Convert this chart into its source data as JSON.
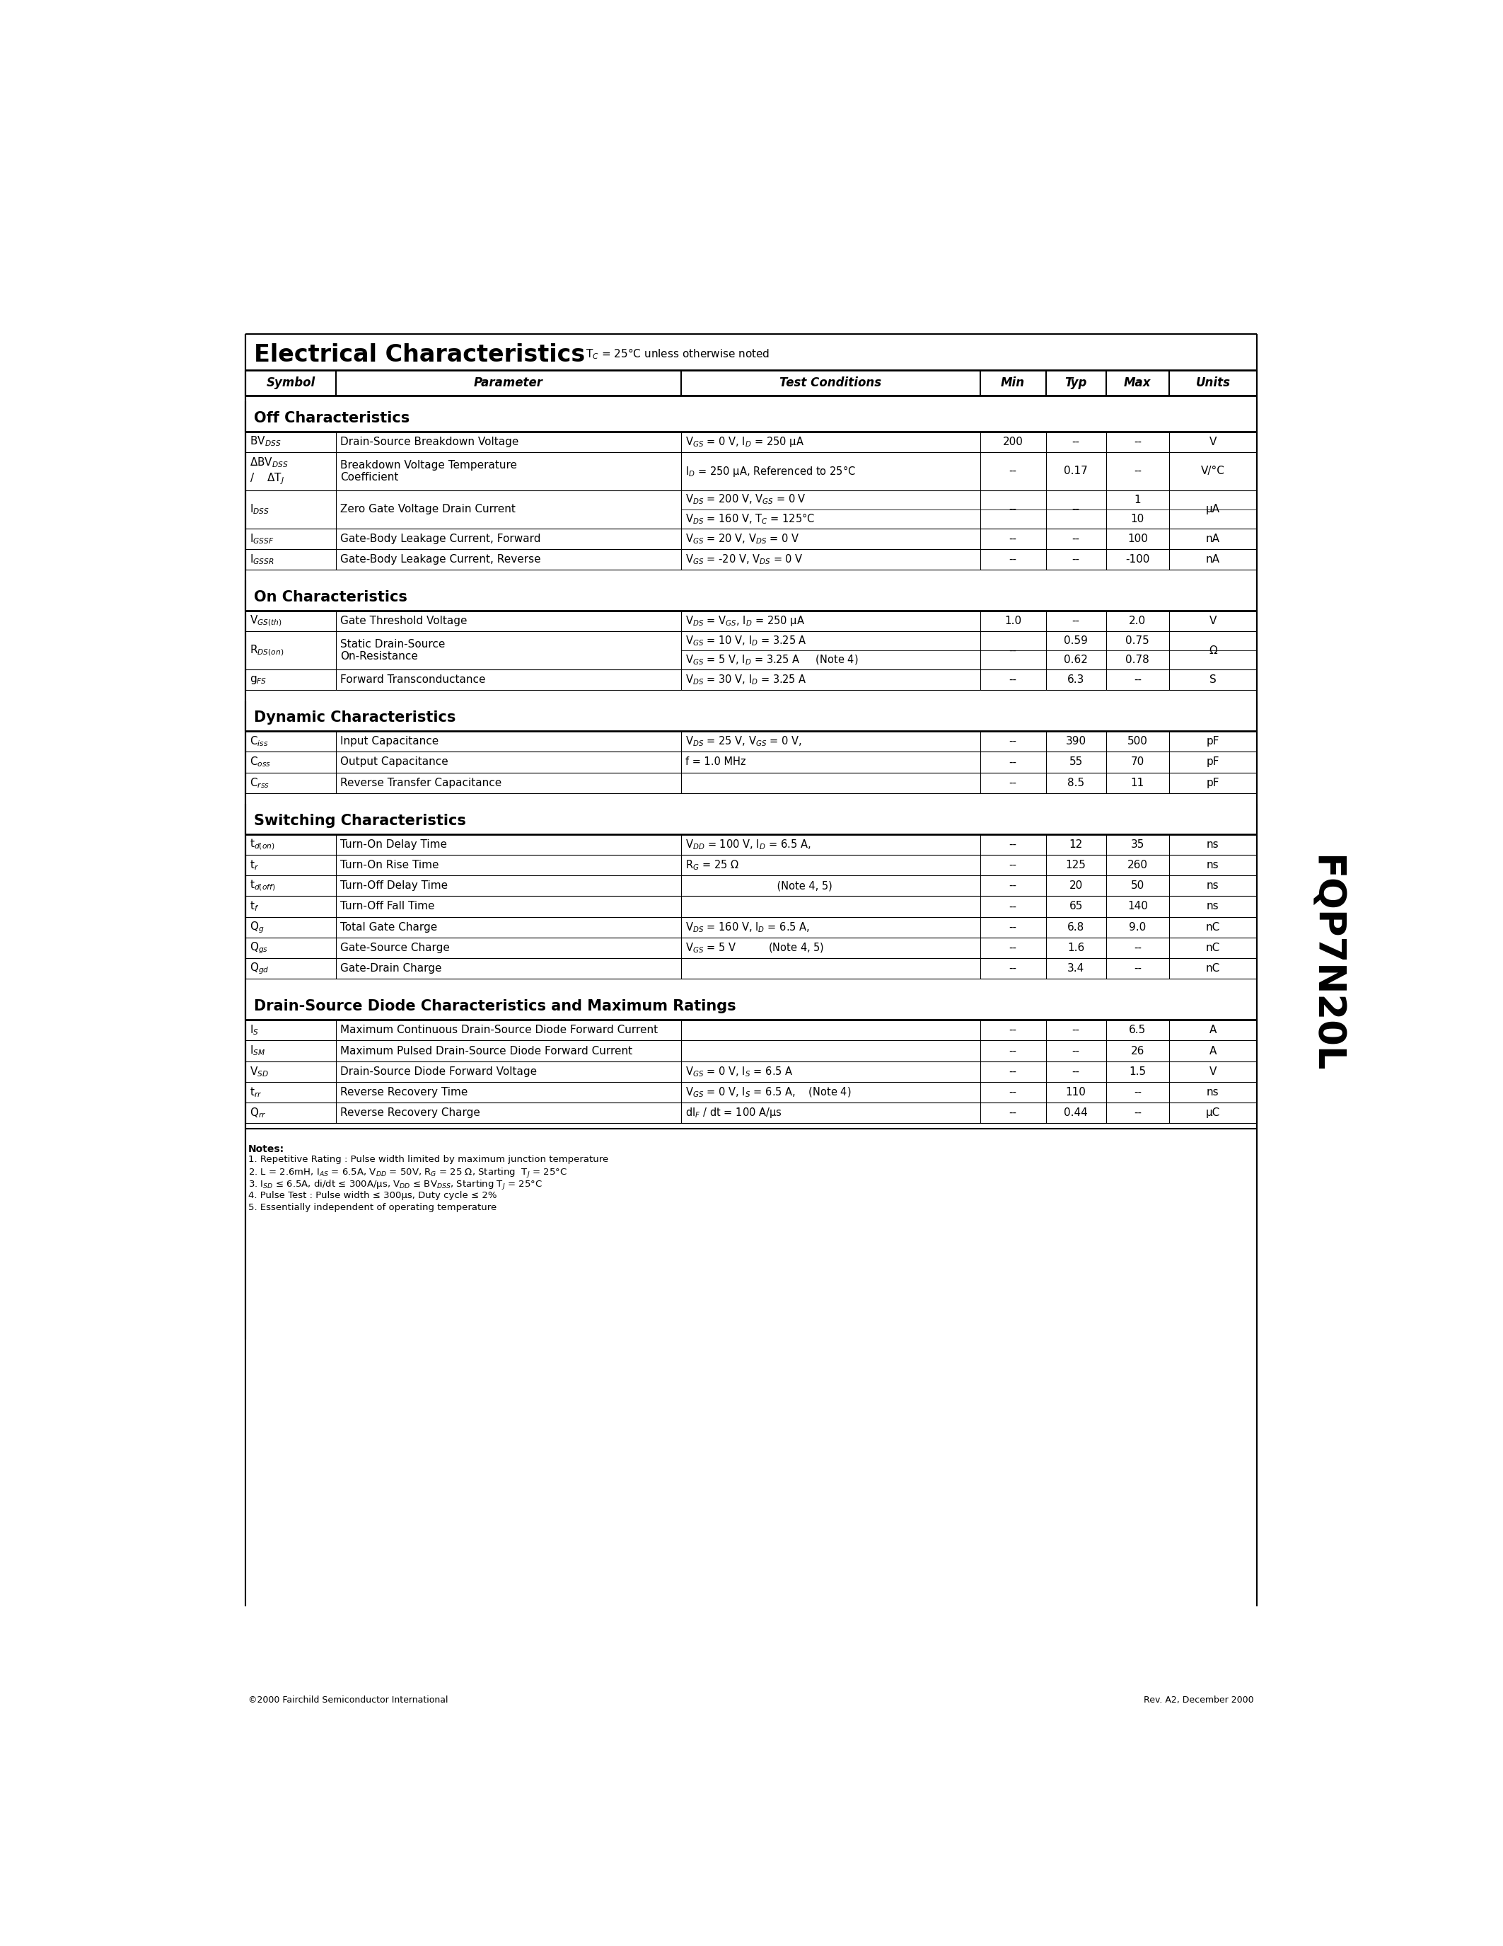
{
  "title": "Electrical Characteristics",
  "tc_note": "T$_C$ = 25°C unless otherwise noted",
  "part_number": "FQP7N20L",
  "background_color": "#ffffff",
  "sections": [
    {
      "section_title": "Off Characteristics",
      "rows": [
        {
          "symbol": "BV$_{DSS}$",
          "parameter": "Drain-Source Breakdown Voltage",
          "cond1": "V$_{GS}$ = 0 V, I$_D$ = 250 μA",
          "cond2": "",
          "min": "200",
          "typ": "--",
          "max": "--",
          "units": "V",
          "two_rows": false
        },
        {
          "symbol": "ΔBV$_{DSS}$\n/    ΔT$_J$",
          "parameter": "Breakdown Voltage Temperature\nCoefficient",
          "cond1": "I$_D$ = 250 μA, Referenced to 25°C",
          "cond2": "",
          "min": "--",
          "typ": "0.17",
          "max": "--",
          "units": "V/°C",
          "two_rows": false
        },
        {
          "symbol": "I$_{DSS}$",
          "parameter": "Zero Gate Voltage Drain Current",
          "cond1": "V$_{DS}$ = 200 V, V$_{GS}$ = 0 V",
          "cond2": "V$_{DS}$ = 160 V, T$_C$ = 125°C",
          "min": "--",
          "typ": "--",
          "max": "1",
          "max2": "10",
          "units": "μA",
          "two_rows": true
        },
        {
          "symbol": "I$_{GSSF}$",
          "parameter": "Gate-Body Leakage Current, Forward",
          "cond1": "V$_{GS}$ = 20 V, V$_{DS}$ = 0 V",
          "cond2": "",
          "min": "--",
          "typ": "--",
          "max": "100",
          "units": "nA",
          "two_rows": false
        },
        {
          "symbol": "I$_{GSSR}$",
          "parameter": "Gate-Body Leakage Current, Reverse",
          "cond1": "V$_{GS}$ = -20 V, V$_{DS}$ = 0 V",
          "cond2": "",
          "min": "--",
          "typ": "--",
          "max": "-100",
          "units": "nA",
          "two_rows": false
        }
      ]
    },
    {
      "section_title": "On Characteristics",
      "rows": [
        {
          "symbol": "V$_{GS(th)}$",
          "parameter": "Gate Threshold Voltage",
          "cond1": "V$_{DS}$ = V$_{GS}$, I$_D$ = 250 μA",
          "cond2": "",
          "min": "1.0",
          "typ": "--",
          "max": "2.0",
          "units": "V",
          "two_rows": false
        },
        {
          "symbol": "R$_{DS(on)}$",
          "parameter": "Static Drain-Source\nOn-Resistance",
          "cond1": "V$_{GS}$ = 10 V, I$_D$ = 3.25 A",
          "cond2": "V$_{GS}$ = 5 V, I$_D$ = 3.25 A     (Note 4)",
          "min": "--",
          "typ": "0.59",
          "typ2": "0.62",
          "max": "0.75",
          "max2": "0.78",
          "units": "Ω",
          "two_rows": true
        },
        {
          "symbol": "g$_{FS}$",
          "parameter": "Forward Transconductance",
          "cond1": "V$_{DS}$ = 30 V, I$_D$ = 3.25 A",
          "cond2": "",
          "min": "--",
          "typ": "6.3",
          "max": "--",
          "units": "S",
          "two_rows": false
        }
      ]
    },
    {
      "section_title": "Dynamic Characteristics",
      "rows": [
        {
          "symbol": "C$_{iss}$",
          "parameter": "Input Capacitance",
          "cond1": "V$_{DS}$ = 25 V, V$_{GS}$ = 0 V,",
          "cond2": "",
          "min": "--",
          "typ": "390",
          "max": "500",
          "units": "pF",
          "two_rows": false
        },
        {
          "symbol": "C$_{oss}$",
          "parameter": "Output Capacitance",
          "cond1": "f = 1.0 MHz",
          "cond2": "",
          "min": "--",
          "typ": "55",
          "max": "70",
          "units": "pF",
          "two_rows": false
        },
        {
          "symbol": "C$_{rss}$",
          "parameter": "Reverse Transfer Capacitance",
          "cond1": "",
          "cond2": "",
          "min": "--",
          "typ": "8.5",
          "max": "11",
          "units": "pF",
          "two_rows": false
        }
      ]
    },
    {
      "section_title": "Switching Characteristics",
      "rows": [
        {
          "symbol": "t$_{d(on)}$",
          "parameter": "Turn-On Delay Time",
          "cond1": "V$_{DD}$ = 100 V, I$_D$ = 6.5 A,",
          "cond2": "",
          "min": "--",
          "typ": "12",
          "max": "35",
          "units": "ns",
          "two_rows": false
        },
        {
          "symbol": "t$_r$",
          "parameter": "Turn-On Rise Time",
          "cond1": "R$_G$ = 25 Ω",
          "cond2": "",
          "min": "--",
          "typ": "125",
          "max": "260",
          "units": "ns",
          "two_rows": false
        },
        {
          "symbol": "t$_{d(off)}$",
          "parameter": "Turn-Off Delay Time",
          "cond1": "                            (Note 4, 5)",
          "cond2": "",
          "min": "--",
          "typ": "20",
          "max": "50",
          "units": "ns",
          "two_rows": false
        },
        {
          "symbol": "t$_f$",
          "parameter": "Turn-Off Fall Time",
          "cond1": "",
          "cond2": "",
          "min": "--",
          "typ": "65",
          "max": "140",
          "units": "ns",
          "two_rows": false
        },
        {
          "symbol": "Q$_g$",
          "parameter": "Total Gate Charge",
          "cond1": "V$_{DS}$ = 160 V, I$_D$ = 6.5 A,",
          "cond2": "",
          "min": "--",
          "typ": "6.8",
          "max": "9.0",
          "units": "nC",
          "two_rows": false
        },
        {
          "symbol": "Q$_{gs}$",
          "parameter": "Gate-Source Charge",
          "cond1": "V$_{GS}$ = 5 V          (Note 4, 5)",
          "cond2": "",
          "min": "--",
          "typ": "1.6",
          "max": "--",
          "units": "nC",
          "two_rows": false
        },
        {
          "symbol": "Q$_{gd}$",
          "parameter": "Gate-Drain Charge",
          "cond1": "",
          "cond2": "",
          "min": "--",
          "typ": "3.4",
          "max": "--",
          "units": "nC",
          "two_rows": false
        }
      ]
    },
    {
      "section_title": "Drain-Source Diode Characteristics and Maximum Ratings",
      "rows": [
        {
          "symbol": "I$_S$",
          "parameter": "Maximum Continuous Drain-Source Diode Forward Current",
          "cond1": "",
          "cond2": "",
          "min": "--",
          "typ": "--",
          "max": "6.5",
          "units": "A",
          "two_rows": false
        },
        {
          "symbol": "I$_{SM}$",
          "parameter": "Maximum Pulsed Drain-Source Diode Forward Current",
          "cond1": "",
          "cond2": "",
          "min": "--",
          "typ": "--",
          "max": "26",
          "units": "A",
          "two_rows": false
        },
        {
          "symbol": "V$_{SD}$",
          "parameter": "Drain-Source Diode Forward Voltage",
          "cond1": "V$_{GS}$ = 0 V, I$_S$ = 6.5 A",
          "cond2": "",
          "min": "--",
          "typ": "--",
          "max": "1.5",
          "units": "V",
          "two_rows": false
        },
        {
          "symbol": "t$_{rr}$",
          "parameter": "Reverse Recovery Time",
          "cond1": "V$_{GS}$ = 0 V, I$_S$ = 6.5 A,    (Note 4)",
          "cond2": "",
          "min": "--",
          "typ": "110",
          "max": "--",
          "units": "ns",
          "two_rows": false
        },
        {
          "symbol": "Q$_{rr}$",
          "parameter": "Reverse Recovery Charge",
          "cond1": "dI$_F$ / dt = 100 A/μs",
          "cond2": "",
          "min": "--",
          "typ": "0.44",
          "max": "--",
          "units": "μC",
          "two_rows": false
        }
      ]
    }
  ],
  "notes_title": "Notes:",
  "notes": [
    "1. Repetitive Rating : Pulse width limited by maximum junction temperature",
    "2. L = 2.6mH, I$_{AS}$ = 6.5A, V$_{DD}$ = 50V, R$_G$ = 25 Ω, Starting  T$_J$ = 25°C",
    "3. I$_{SD}$ ≤ 6.5A, di/dt ≤ 300A/μs, V$_{DD}$ ≤ BV$_{DSS}$, Starting T$_J$ = 25°C",
    "4. Pulse Test : Pulse width ≤ 300μs, Duty cycle ≤ 2%",
    "5. Essentially independent of operating temperature"
  ],
  "footer_left": "©2000 Fairchild Semiconductor International",
  "footer_right": "Rev. A2, December 2000"
}
